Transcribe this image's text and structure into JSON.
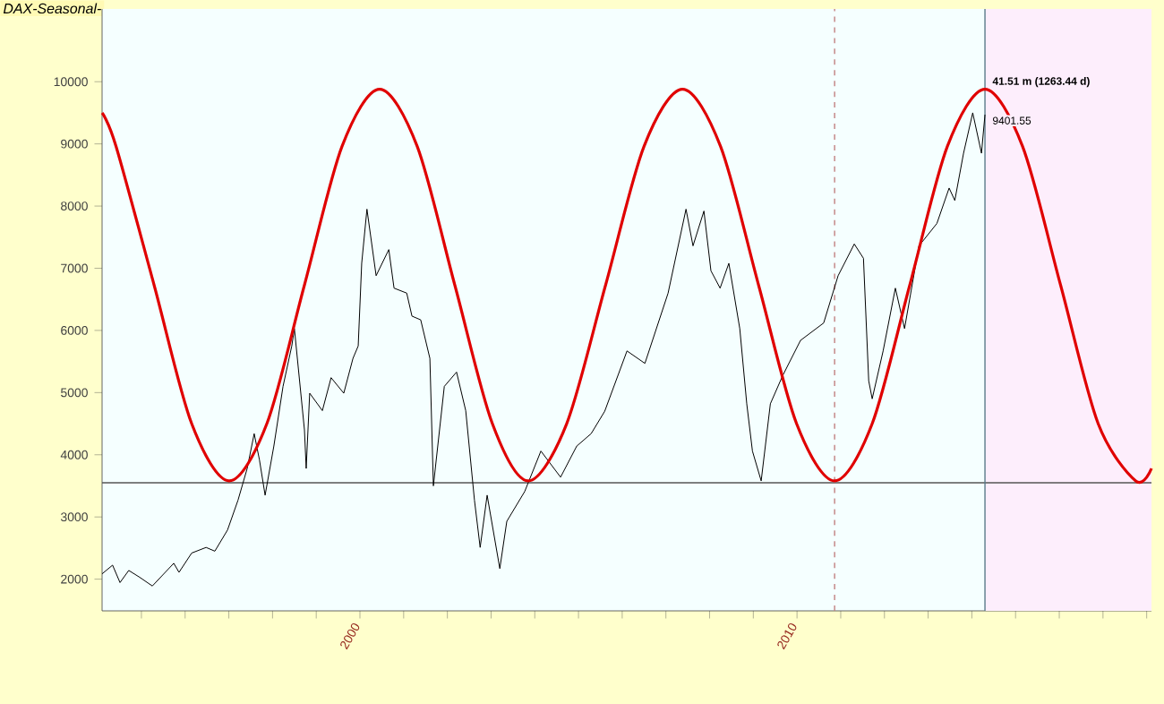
{
  "chart_data": {
    "type": "line",
    "title": "DAX-Seasonal-",
    "xlim": [
      1994.1,
      2018.11
    ],
    "ylim": [
      1490,
      11170
    ],
    "xticks": [
      {
        "value": 1995,
        "label": null
      },
      {
        "value": 1996,
        "label": null
      },
      {
        "value": 1997,
        "label": null
      },
      {
        "value": 1998,
        "label": null
      },
      {
        "value": 1999,
        "label": null
      },
      2000,
      {
        "value": 2001,
        "label": null
      },
      {
        "value": 2002,
        "label": null
      },
      {
        "value": 2003,
        "label": null
      },
      {
        "value": 2004,
        "label": null
      },
      {
        "value": 2005,
        "label": null
      },
      {
        "value": 2006,
        "label": null
      },
      {
        "value": 2007,
        "label": null
      },
      {
        "value": 2008,
        "label": null
      },
      {
        "value": 2009,
        "label": null
      },
      2010,
      {
        "value": 2011,
        "label": null
      },
      {
        "value": 2012,
        "label": null
      },
      {
        "value": 2013,
        "label": null
      },
      {
        "value": 2014,
        "label": null
      },
      {
        "value": 2015,
        "label": null
      },
      {
        "value": 2016,
        "label": null
      },
      {
        "value": 2017,
        "label": null
      },
      {
        "value": 2018,
        "label": null
      }
    ],
    "yticks": [
      2000,
      3000,
      4000,
      5000,
      6000,
      7000,
      8000,
      9000,
      10000
    ],
    "grid": false,
    "series": [
      {
        "color": "#000000",
        "line_style": "solid",
        "x": [
          1994.1,
          1994.34,
          1994.51,
          1994.71,
          1994.96,
          1995.25,
          1995.74,
          1995.86,
          1996.15,
          1996.48,
          1996.68,
          1996.97,
          1997.21,
          1997.42,
          1997.58,
          1997.7,
          1997.83,
          1998.03,
          1998.24,
          1998.44,
          1998.5,
          1998.73,
          1998.77,
          1998.85,
          1999.14,
          1999.34,
          1999.63,
          1999.84,
          1999.96,
          2000.04,
          2000.16,
          2000.37,
          2000.66,
          2000.78,
          2001.07,
          2001.19,
          2001.39,
          2001.6,
          2001.68,
          2001.93,
          2002.21,
          2002.42,
          2002.62,
          2002.75,
          2002.91,
          2003.2,
          2003.36,
          2003.77,
          2004.14,
          2004.59,
          2004.96,
          2005.29,
          2005.6,
          2006.11,
          2006.52,
          2007.05,
          2007.46,
          2007.62,
          2007.87,
          2008.03,
          2008.24,
          2008.44,
          2008.69,
          2008.85,
          2008.98,
          2009.18,
          2009.39,
          2009.67,
          2010.08,
          2010.61,
          2010.94,
          2011.31,
          2011.52,
          2011.64,
          2011.72,
          2011.97,
          2012.25,
          2012.46,
          2012.79,
          2013.2,
          2013.48,
          2013.61,
          2013.81,
          2014.02,
          2014.22,
          2014.3
        ],
        "values": [
          2085,
          2225,
          1945,
          2140,
          2030,
          1890,
          2255,
          2110,
          2420,
          2510,
          2450,
          2790,
          3270,
          3780,
          4340,
          3920,
          3350,
          4140,
          5100,
          5750,
          6030,
          4400,
          3780,
          4990,
          4710,
          5240,
          4990,
          5550,
          5750,
          7080,
          7950,
          6880,
          7300,
          6680,
          6600,
          6230,
          6170,
          5550,
          3500,
          5100,
          5330,
          4710,
          3270,
          2510,
          3350,
          2170,
          2930,
          3410,
          4060,
          3640,
          4140,
          4340,
          4700,
          5670,
          5470,
          6600,
          7950,
          7360,
          7920,
          6960,
          6680,
          7080,
          6030,
          4820,
          4060,
          3580,
          4820,
          5270,
          5840,
          6120,
          6880,
          7390,
          7160,
          5190,
          4900,
          5670,
          6680,
          6030,
          7360,
          7720,
          8290,
          8090,
          8850,
          9500,
          8850,
          9470
        ]
      },
      {
        "color": "#e00000",
        "line_style": "solid",
        "x": [
          1994.1,
          1994.42,
          1995.29,
          1996.15,
          1997.01,
          1997.87,
          1998.73,
          1999.59,
          2000.45,
          2001.31,
          2002.17,
          2003.03,
          2003.85,
          2004.73,
          2005.62,
          2006.5,
          2007.38,
          2008.25,
          2009.12,
          2009.99,
          2010.86,
          2011.72,
          2012.58,
          2013.44,
          2014.3,
          2015.16,
          2016.03,
          2016.89,
          2017.75,
          2018.11
        ],
        "values": [
          9500,
          8960,
          6730,
          4500,
          3580,
          4500,
          6730,
          8960,
          9880,
          8960,
          6730,
          4500,
          3580,
          4500,
          6730,
          8960,
          9880,
          8960,
          6730,
          4500,
          3580,
          4500,
          6730,
          8960,
          9880,
          8960,
          6730,
          4500,
          3580,
          3780
        ]
      }
    ],
    "ref_lines": [
      {
        "axis": "y",
        "value": 3550,
        "color": "#555555",
        "line_style": "solid"
      },
      {
        "axis": "x",
        "value": 2010.86,
        "color": "#c08080",
        "line_style": "dashed"
      },
      {
        "axis": "x",
        "value": 2014.3,
        "color": "#5a7a8a",
        "line_style": "solid"
      }
    ],
    "bands": [
      {
        "axis": "x",
        "from": 2014.3,
        "to": 2018.11,
        "color": "#fdeefc"
      }
    ],
    "annotations": [
      {
        "text": "41.51 m (1263.44 d)",
        "x": 2014.3,
        "y": 9880
      },
      {
        "text": "9401.55",
        "x": 2014.3,
        "y": 9470
      }
    ]
  }
}
